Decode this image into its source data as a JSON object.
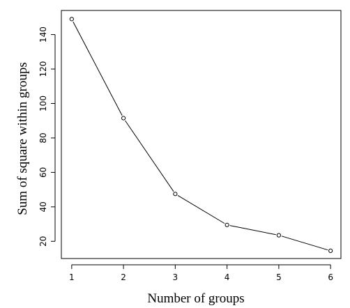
{
  "colors": {
    "line": "#000000",
    "background": "#ffffff",
    "text": "#000000"
  },
  "chart_data": {
    "type": "line",
    "markers": "open-circle",
    "x": [
      1,
      2,
      3,
      4,
      5,
      6
    ],
    "y": [
      149,
      91.5,
      47.5,
      29.5,
      23.5,
      14.5
    ],
    "xlabel": "Number of groups",
    "ylabel": "Sum of square within groups",
    "xlim": [
      0.8,
      6.2
    ],
    "ylim": [
      10,
      154
    ],
    "xticks": [
      1,
      2,
      3,
      4,
      5,
      6
    ],
    "yticks": [
      20,
      40,
      60,
      80,
      100,
      120,
      140
    ],
    "grid": false,
    "box": true
  }
}
